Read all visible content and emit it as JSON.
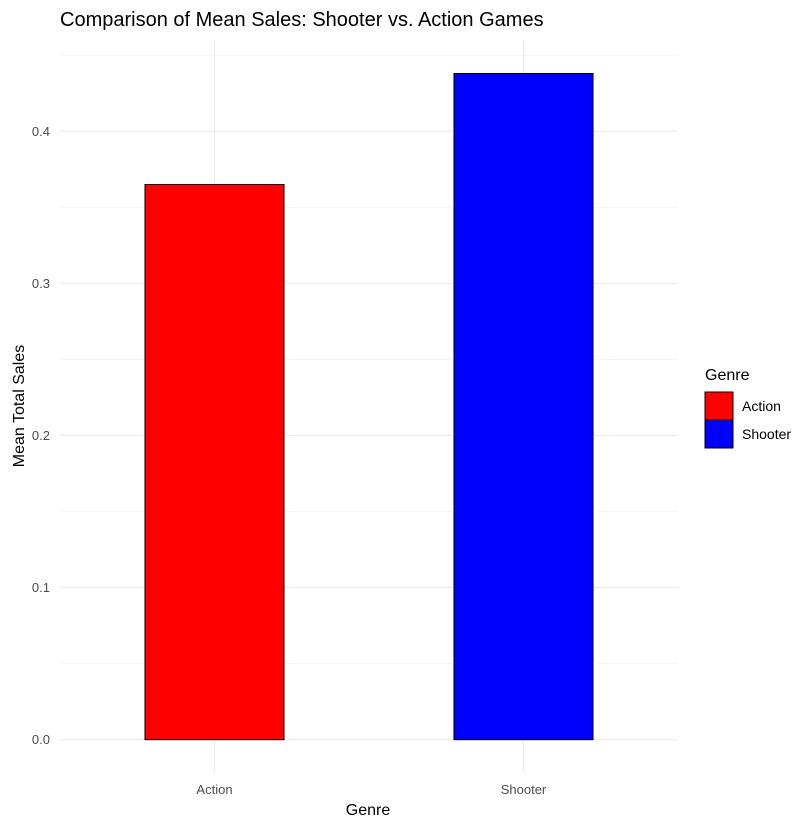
{
  "chart_data": {
    "type": "bar",
    "title": "Comparison of Mean Sales: Shooter vs. Action Games",
    "xlabel": "Genre",
    "ylabel": "Mean Total Sales",
    "categories": [
      "Action",
      "Shooter"
    ],
    "values": [
      0.365,
      0.438
    ],
    "colors": [
      "#ff0000",
      "#0000ff"
    ],
    "bar_outline_color": "#000000",
    "ylim": [
      -0.0219,
      0.46
    ],
    "yticks": [
      0.0,
      0.1,
      0.2,
      0.3,
      0.4
    ],
    "ytick_labels": [
      "0.0",
      "0.1",
      "0.2",
      "0.3",
      "0.4"
    ],
    "grid": true,
    "legend": {
      "title": "Genre",
      "position": "right",
      "entries": [
        {
          "label": "Action",
          "color": "#ff0000"
        },
        {
          "label": "Shooter",
          "color": "#0000ff"
        }
      ]
    }
  }
}
